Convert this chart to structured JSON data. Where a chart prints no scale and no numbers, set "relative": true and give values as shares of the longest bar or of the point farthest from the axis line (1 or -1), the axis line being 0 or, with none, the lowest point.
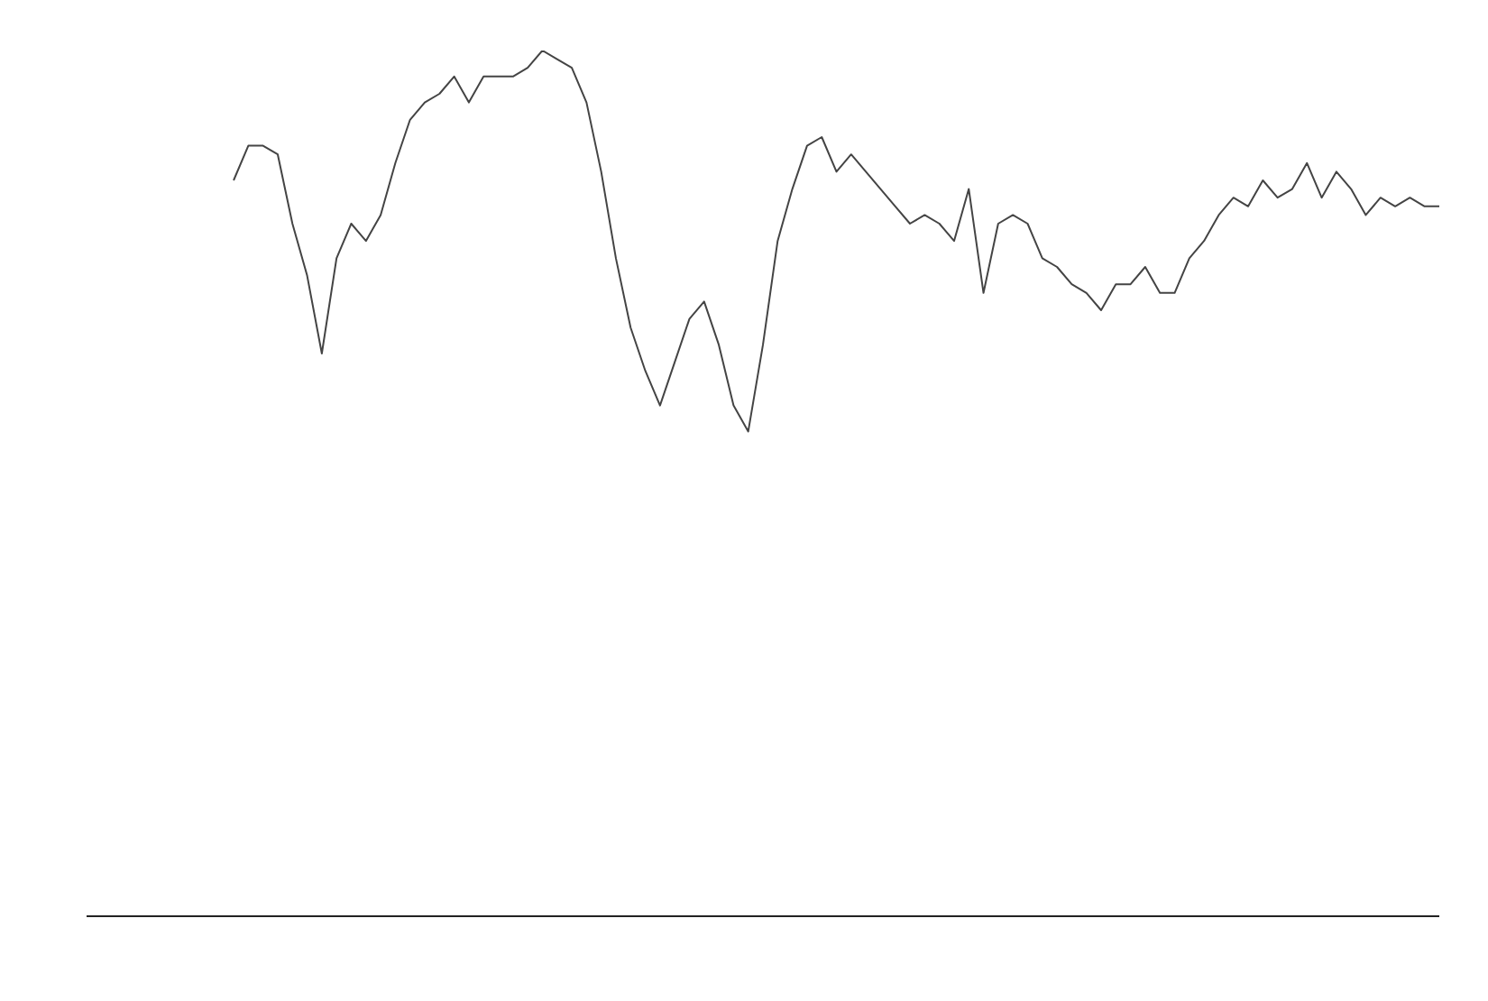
{
  "chart_data": {
    "type": "line",
    "relative": true,
    "color": "#444444",
    "marker": "none",
    "line_style": "solid",
    "grid": false,
    "legend": false,
    "categories": [
      null,
      null,
      null,
      null,
      null,
      null,
      null,
      null,
      null,
      null,
      null,
      null,
      null,
      null,
      null,
      null,
      null,
      null,
      null,
      null,
      null,
      null,
      null,
      null,
      null,
      null,
      null,
      null,
      null,
      null,
      null,
      null,
      null,
      null,
      null,
      null,
      null,
      null,
      null,
      null,
      null,
      null,
      null,
      null,
      null,
      null,
      null,
      null,
      null,
      null,
      null,
      null,
      null,
      null,
      null,
      null,
      null,
      null,
      null,
      null,
      null,
      null,
      null,
      null,
      null,
      null,
      null,
      null,
      null,
      null,
      null,
      null,
      null,
      null,
      null,
      null,
      null,
      null,
      null,
      null,
      null,
      null,
      null,
      null,
      null,
      null,
      null,
      null,
      null,
      null,
      null,
      null,
      null
    ],
    "values": [
      null,
      null,
      null,
      null,
      null,
      null,
      null,
      null,
      null,
      null,
      0.85,
      0.89,
      0.89,
      0.88,
      0.8,
      0.74,
      0.65,
      0.76,
      0.8,
      0.78,
      0.81,
      0.87,
      0.92,
      0.94,
      0.95,
      0.97,
      0.94,
      0.97,
      0.97,
      0.97,
      0.98,
      1,
      0.99,
      0.98,
      0.94,
      0.86,
      0.76,
      0.68,
      0.63,
      0.59,
      0.64,
      0.69,
      0.71,
      0.66,
      0.59,
      0.56,
      0.66,
      0.78,
      0.84,
      0.89,
      0.9,
      0.86,
      0.88,
      0.86,
      0.84,
      0.82,
      0.8,
      0.81,
      0.8,
      0.78,
      0.84,
      0.72,
      0.8,
      0.81,
      0.8,
      0.76,
      0.75,
      0.73,
      0.72,
      0.7,
      0.73,
      0.73,
      0.75,
      0.72,
      0.72,
      0.76,
      0.78,
      0.81,
      0.83,
      0.82,
      0.85,
      0.83,
      0.84,
      0.87,
      0.83,
      0.86,
      0.84,
      0.81,
      0.83,
      0.82,
      0.83,
      0.82,
      0.82
    ]
  }
}
